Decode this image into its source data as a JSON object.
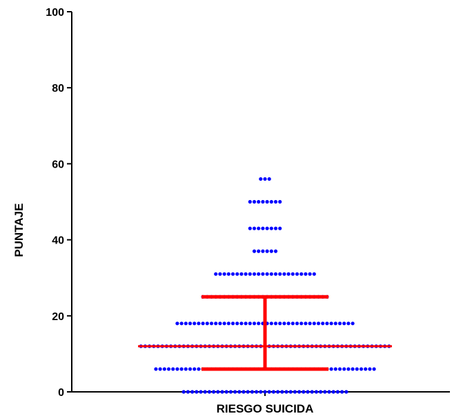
{
  "chart_data": {
    "type": "scatter",
    "subtype": "column dot plot with median and interquartile range",
    "categories": [
      "RIESGO SUICIDA"
    ],
    "xlabel": "RIESGO SUICIDA",
    "ylabel": "PUNTAJE",
    "ylim": [
      0,
      100
    ],
    "yticks": [
      0,
      20,
      40,
      60,
      80,
      100
    ],
    "grid": false,
    "legend": "none",
    "dot_rows": [
      {
        "y": 0,
        "count": 39
      },
      {
        "y": 6,
        "count": 52
      },
      {
        "y": 12,
        "count": 59
      },
      {
        "y": 18,
        "count": 42
      },
      {
        "y": 25,
        "count": 30
      },
      {
        "y": 31,
        "count": 24
      },
      {
        "y": 37,
        "count": 6
      },
      {
        "y": 43,
        "count": 8
      },
      {
        "y": 50,
        "count": 8
      },
      {
        "y": 56,
        "count": 3
      }
    ],
    "summary": {
      "median": 12,
      "q1": 6,
      "q3": 25
    },
    "colors": {
      "points": "#0000ff",
      "summary": "#ff0000",
      "axis": "#000000"
    }
  }
}
